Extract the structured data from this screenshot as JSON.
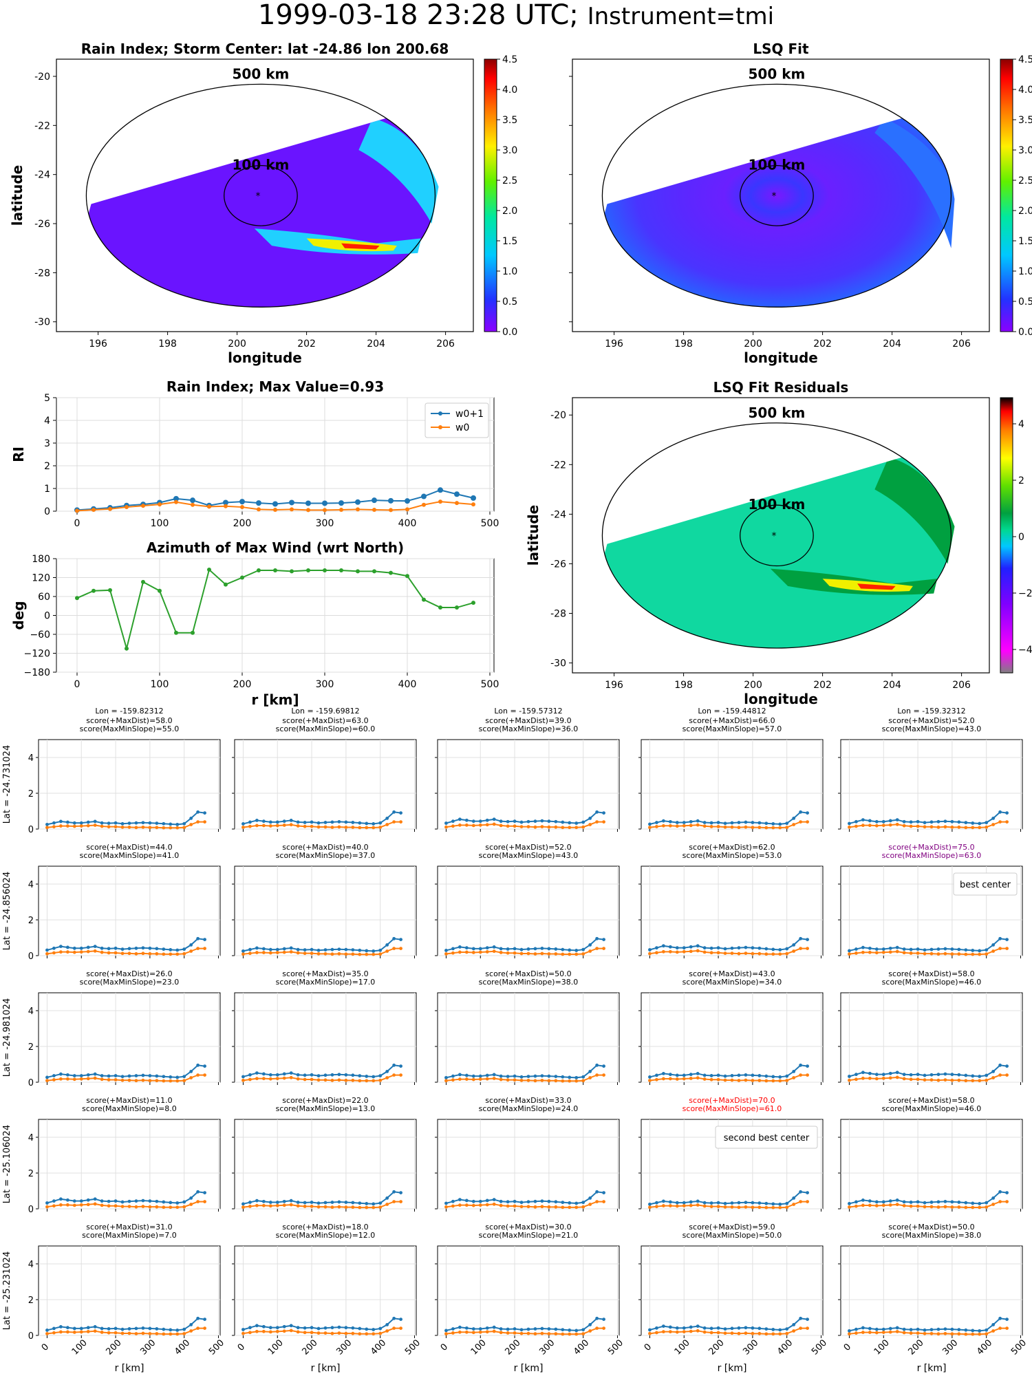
{
  "suptitle": {
    "date": "1999-03-18 23:28 UTC;",
    "instrument": "Instrument=tmi"
  },
  "colors": {
    "w0p1": "#1f77b4",
    "w0": "#ff7f0e",
    "azimuth": "#2ca02c",
    "best": "#800080",
    "second": "#ff0000"
  },
  "map_panels": [
    {
      "title": "Rain Index; Storm Center: lat -24.86 lon 200.68",
      "xlabel": "longitude",
      "ylabel": "latitude",
      "xticks": [
        "196",
        "198",
        "200",
        "202",
        "204",
        "206"
      ],
      "yticks": [
        "-20",
        "-22",
        "-24",
        "-26",
        "-28",
        "-30"
      ],
      "cbar_ticks": [
        "0.0",
        "0.5",
        "1.0",
        "1.5",
        "2.0",
        "2.5",
        "3.0",
        "3.5",
        "4.0",
        "4.5"
      ],
      "ring_outer": "500 km",
      "ring_inner": "100 km"
    },
    {
      "title": "LSQ Fit",
      "xlabel": "longitude",
      "ylabel": "",
      "xticks": [
        "196",
        "198",
        "200",
        "202",
        "204",
        "206"
      ],
      "yticks": [],
      "cbar_ticks": [
        "0.0",
        "0.5",
        "1.0",
        "1.5",
        "2.0",
        "2.5",
        "3.0",
        "3.5",
        "4.0",
        "4.5"
      ],
      "ring_outer": "500 km",
      "ring_inner": "100 km"
    },
    {
      "title": "LSQ Fit Residuals",
      "xlabel": "longitude",
      "ylabel": "latitude",
      "xticks": [
        "196",
        "198",
        "200",
        "202",
        "204",
        "206"
      ],
      "yticks": [
        "-20",
        "-22",
        "-24",
        "-26",
        "-28",
        "-30"
      ],
      "cbar_ticks": [
        "4",
        "2",
        "0",
        "−2",
        "−4"
      ],
      "ring_outer": "500 km",
      "ring_inner": "100 km"
    }
  ],
  "chart_data": [
    {
      "type": "line",
      "title": "Rain Index; Max Value=0.93",
      "xlabel": "",
      "ylabel": "RI",
      "xlim": [
        -25,
        505
      ],
      "ylim": [
        0,
        5
      ],
      "xticks": [
        "0",
        "100",
        "200",
        "300",
        "400",
        "500"
      ],
      "yticks": [
        "0",
        "1",
        "2",
        "3",
        "4",
        "5"
      ],
      "legend": "top-right",
      "x": [
        0,
        20,
        40,
        60,
        80,
        100,
        120,
        140,
        160,
        180,
        200,
        220,
        240,
        260,
        280,
        300,
        320,
        340,
        360,
        380,
        400,
        420,
        440,
        460,
        480
      ],
      "series": [
        {
          "name": "w0+1",
          "values": [
            0.05,
            0.1,
            0.15,
            0.25,
            0.3,
            0.38,
            0.55,
            0.48,
            0.25,
            0.38,
            0.42,
            0.36,
            0.32,
            0.38,
            0.35,
            0.35,
            0.36,
            0.4,
            0.48,
            0.46,
            0.45,
            0.65,
            0.93,
            0.75,
            0.58
          ]
        },
        {
          "name": "w0",
          "values": [
            0.02,
            0.06,
            0.1,
            0.18,
            0.24,
            0.3,
            0.4,
            0.28,
            0.2,
            0.22,
            0.18,
            0.08,
            0.06,
            0.08,
            0.05,
            0.05,
            0.06,
            0.08,
            0.06,
            0.05,
            0.08,
            0.28,
            0.42,
            0.36,
            0.3
          ]
        }
      ]
    },
    {
      "type": "line",
      "title": "Azimuth of Max Wind (wrt North)",
      "xlabel": "r [km]",
      "ylabel": "deg",
      "xlim": [
        -25,
        505
      ],
      "ylim": [
        -180,
        180
      ],
      "xticks": [
        "0",
        "100",
        "200",
        "300",
        "400",
        "500"
      ],
      "yticks": [
        "180",
        "120",
        "60",
        "0",
        "−60",
        "−120",
        "−180"
      ],
      "x": [
        0,
        20,
        40,
        60,
        80,
        100,
        120,
        140,
        160,
        180,
        200,
        220,
        240,
        260,
        280,
        300,
        320,
        340,
        360,
        380,
        400,
        420,
        440,
        460,
        480
      ],
      "series": [
        {
          "name": "",
          "values": [
            55,
            78,
            80,
            -105,
            106,
            78,
            -55,
            -55,
            145,
            98,
            120,
            143,
            143,
            140,
            143,
            143,
            143,
            140,
            140,
            135,
            125,
            50,
            25,
            25,
            40
          ]
        }
      ]
    }
  ],
  "grid": {
    "col_lons": [
      "Lon = -159.82312",
      "Lon = -159.69812",
      "Lon = -159.57312",
      "Lon = -159.44812",
      "Lon = -159.32312"
    ],
    "row_lats": [
      "Lat = -24.731024",
      "Lat = -24.856024",
      "Lat = -24.981024",
      "Lat = -25.106024",
      "Lat = -25.231024"
    ],
    "xticks": [
      "0",
      "100",
      "200",
      "300",
      "400",
      "500"
    ],
    "yticks": [
      "0",
      "2",
      "4"
    ],
    "xlabel": "r [km]",
    "cells": [
      [
        {
          "s1": "score(+MaxDist)=58.0",
          "s2": "score(MaxMinSlope)=55.0",
          "hl": "",
          "legend": ""
        },
        {
          "s1": "score(+MaxDist)=63.0",
          "s2": "score(MaxMinSlope)=60.0",
          "hl": "",
          "legend": ""
        },
        {
          "s1": "score(+MaxDist)=39.0",
          "s2": "score(MaxMinSlope)=36.0",
          "hl": "",
          "legend": ""
        },
        {
          "s1": "score(+MaxDist)=66.0",
          "s2": "score(MaxMinSlope)=57.0",
          "hl": "",
          "legend": ""
        },
        {
          "s1": "score(+MaxDist)=52.0",
          "s2": "score(MaxMinSlope)=43.0",
          "hl": "",
          "legend": ""
        }
      ],
      [
        {
          "s1": "score(+MaxDist)=44.0",
          "s2": "score(MaxMinSlope)=41.0",
          "hl": "",
          "legend": ""
        },
        {
          "s1": "score(+MaxDist)=40.0",
          "s2": "score(MaxMinSlope)=37.0",
          "hl": "",
          "legend": ""
        },
        {
          "s1": "score(+MaxDist)=52.0",
          "s2": "score(MaxMinSlope)=43.0",
          "hl": "",
          "legend": ""
        },
        {
          "s1": "score(+MaxDist)=62.0",
          "s2": "score(MaxMinSlope)=53.0",
          "hl": "",
          "legend": ""
        },
        {
          "s1": "score(+MaxDist)=75.0",
          "s2": "score(MaxMinSlope)=63.0",
          "hl": "best",
          "legend": "best center"
        }
      ],
      [
        {
          "s1": "score(+MaxDist)=26.0",
          "s2": "score(MaxMinSlope)=23.0",
          "hl": "",
          "legend": ""
        },
        {
          "s1": "score(+MaxDist)=35.0",
          "s2": "score(MaxMinSlope)=17.0",
          "hl": "",
          "legend": ""
        },
        {
          "s1": "score(+MaxDist)=50.0",
          "s2": "score(MaxMinSlope)=38.0",
          "hl": "",
          "legend": ""
        },
        {
          "s1": "score(+MaxDist)=43.0",
          "s2": "score(MaxMinSlope)=34.0",
          "hl": "",
          "legend": ""
        },
        {
          "s1": "score(+MaxDist)=58.0",
          "s2": "score(MaxMinSlope)=46.0",
          "hl": "",
          "legend": ""
        }
      ],
      [
        {
          "s1": "score(+MaxDist)=11.0",
          "s2": "score(MaxMinSlope)=8.0",
          "hl": "",
          "legend": ""
        },
        {
          "s1": "score(+MaxDist)=22.0",
          "s2": "score(MaxMinSlope)=13.0",
          "hl": "",
          "legend": ""
        },
        {
          "s1": "score(+MaxDist)=33.0",
          "s2": "score(MaxMinSlope)=24.0",
          "hl": "",
          "legend": ""
        },
        {
          "s1": "score(+MaxDist)=70.0",
          "s2": "score(MaxMinSlope)=61.0",
          "hl": "second",
          "legend": "second best center"
        },
        {
          "s1": "score(+MaxDist)=58.0",
          "s2": "score(MaxMinSlope)=46.0",
          "hl": "",
          "legend": ""
        }
      ],
      [
        {
          "s1": "score(+MaxDist)=31.0",
          "s2": "score(MaxMinSlope)=7.0",
          "hl": "",
          "legend": ""
        },
        {
          "s1": "score(+MaxDist)=18.0",
          "s2": "score(MaxMinSlope)=12.0",
          "hl": "",
          "legend": ""
        },
        {
          "s1": "score(+MaxDist)=30.0",
          "s2": "score(MaxMinSlope)=21.0",
          "hl": "",
          "legend": ""
        },
        {
          "s1": "score(+MaxDist)=59.0",
          "s2": "score(MaxMinSlope)=50.0",
          "hl": "",
          "legend": ""
        },
        {
          "s1": "score(+MaxDist)=50.0",
          "s2": "score(MaxMinSlope)=38.0",
          "hl": "",
          "legend": ""
        }
      ]
    ],
    "w0p1_profile": [
      0.3,
      0.4,
      0.5,
      0.45,
      0.4,
      0.4,
      0.45,
      0.5,
      0.4,
      0.38,
      0.4,
      0.35,
      0.38,
      0.4,
      0.42,
      0.4,
      0.38,
      0.35,
      0.32,
      0.3,
      0.35,
      0.6,
      0.95,
      0.9
    ],
    "w0_profile": [
      0.1,
      0.15,
      0.2,
      0.2,
      0.18,
      0.2,
      0.22,
      0.25,
      0.18,
      0.15,
      0.15,
      0.12,
      0.12,
      0.1,
      0.12,
      0.1,
      0.1,
      0.08,
      0.08,
      0.08,
      0.1,
      0.25,
      0.4,
      0.4
    ]
  }
}
